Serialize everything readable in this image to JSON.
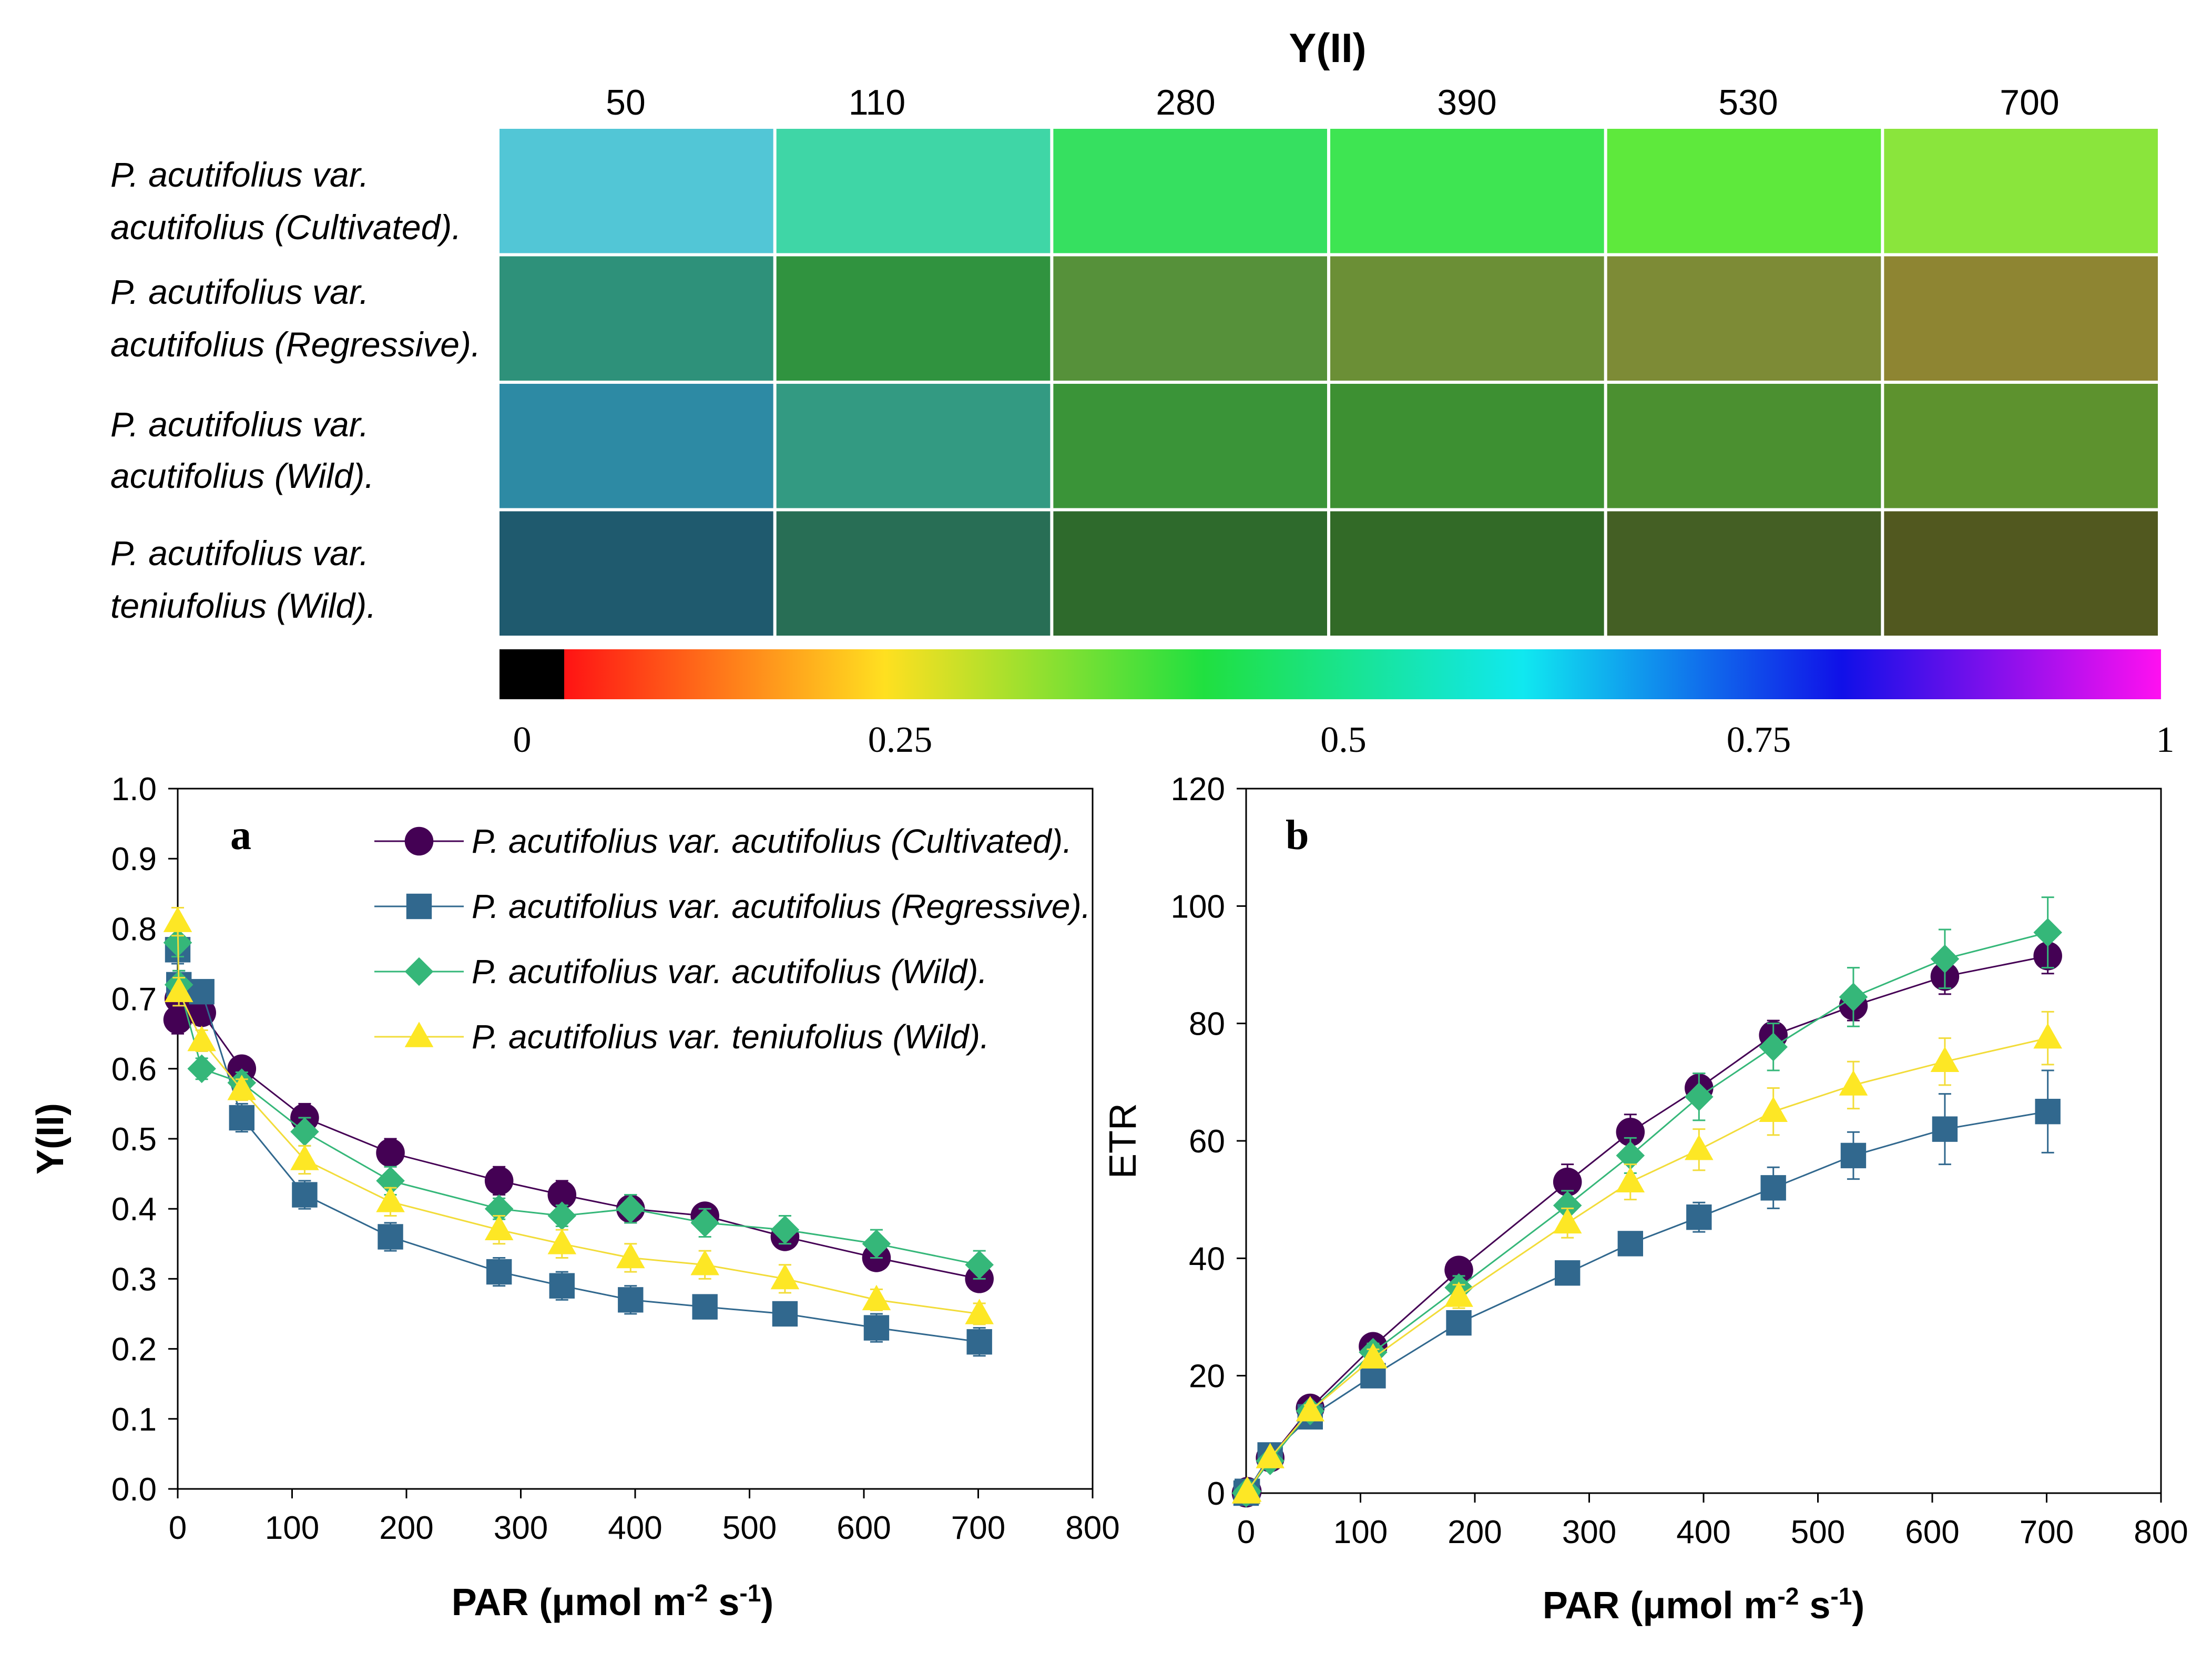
{
  "heatmap": {
    "title": "Y(II)",
    "par_levels": [
      "50",
      "110",
      "280",
      "390",
      "530",
      "700"
    ],
    "rows": [
      {
        "line1": "P. acutifolius var.",
        "line2": "acutifolius (Cultivated).",
        "colors": [
          "#52c6d6",
          "#3fd6a6",
          "#36e060",
          "#3ee552",
          "#5ee93c",
          "#8ae53c"
        ]
      },
      {
        "line1": "P. acutifolius var.",
        "line2": "acutifolius (Regressive).",
        "colors": [
          "#2e917a",
          "#30933f",
          "#56913a",
          "#6b8f36",
          "#7d8b36",
          "#8e8532"
        ]
      },
      {
        "line1": "P. acutifolius var.",
        "line2": "acutifolius (Wild).",
        "colors": [
          "#2d8aa4",
          "#339a82",
          "#3a9438",
          "#3d9032",
          "#4b9030",
          "#5d922e"
        ]
      },
      {
        "line1": "P. acutifolius var.",
        "line2": "teniufolius (Wild).",
        "colors": [
          "#1f5a6e",
          "#286e55",
          "#2e6a2c",
          "#326a27",
          "#445f24",
          "#51581f"
        ]
      }
    ],
    "colorbar": {
      "ticks": [
        "0",
        "0.25",
        "0.5",
        "0.75",
        "1"
      ],
      "stops": [
        "#000000",
        "#ff1414",
        "#ffe020",
        "#20e040",
        "#10e8f0",
        "#1010e8",
        "#ff10f0"
      ]
    }
  },
  "chart_data": [
    {
      "type": "line",
      "panel_label": "a",
      "xlabel": "PAR (μmol m-2 s-1)",
      "xlabel_main": "PAR (μmol m",
      "xlabel_exp1": "-2",
      "xlabel_mid": " s",
      "xlabel_exp2": "-1",
      "xlabel_end": ")",
      "ylabel": "Y(II)",
      "xlim": [
        0,
        800
      ],
      "ylim": [
        0,
        1.0
      ],
      "xticks": [
        "0",
        "100",
        "200",
        "300",
        "400",
        "500",
        "600",
        "700",
        "800"
      ],
      "yticks": [
        "0.0",
        "0.1",
        "0.2",
        "0.3",
        "0.4",
        "0.5",
        "0.6",
        "0.7",
        "0.8",
        "0.9",
        "1.0"
      ],
      "x": [
        0,
        1,
        21,
        56,
        111,
        186,
        281,
        336,
        396,
        461,
        531,
        611,
        701
      ],
      "series": [
        {
          "name": "P. acutifolius var. acutifolius (Cultivated).",
          "marker": "circle",
          "color": "#440154",
          "values": [
            0.67,
            0.7,
            0.68,
            0.6,
            0.53,
            0.48,
            0.44,
            0.42,
            0.4,
            0.39,
            0.36,
            0.33,
            0.3
          ],
          "errors": [
            0.02,
            0.02,
            0.015,
            0.015,
            0.02,
            0.02,
            0.02,
            0.02,
            0.02,
            0.015,
            0.015,
            0.015,
            0.015
          ]
        },
        {
          "name": "P. acutifolius var. acutifolius (Regressive).",
          "marker": "square",
          "color": "#31688e",
          "values": [
            0.77,
            0.72,
            0.71,
            0.53,
            0.42,
            0.36,
            0.31,
            0.29,
            0.27,
            0.26,
            0.25,
            0.23,
            0.21
          ],
          "errors": [
            0.02,
            0.02,
            0.015,
            0.02,
            0.02,
            0.02,
            0.02,
            0.02,
            0.02,
            0.015,
            0.015,
            0.02,
            0.02
          ]
        },
        {
          "name": "P. acutifolius var. acutifolius (Wild).",
          "marker": "diamond",
          "color": "#35b779",
          "values": [
            0.78,
            0.72,
            0.6,
            0.58,
            0.51,
            0.44,
            0.4,
            0.39,
            0.4,
            0.38,
            0.37,
            0.35,
            0.32
          ],
          "errors": [
            0.02,
            0.02,
            0.015,
            0.015,
            0.02,
            0.02,
            0.015,
            0.015,
            0.02,
            0.02,
            0.02,
            0.02,
            0.02
          ]
        },
        {
          "name": "P. acutifolius var. teniufolius (Wild).",
          "marker": "triangle",
          "color": "#fde725",
          "values": [
            0.81,
            0.71,
            0.64,
            0.57,
            0.47,
            0.41,
            0.37,
            0.35,
            0.33,
            0.32,
            0.3,
            0.27,
            0.25
          ],
          "errors": [
            0.02,
            0.02,
            0.015,
            0.015,
            0.02,
            0.02,
            0.02,
            0.02,
            0.02,
            0.02,
            0.02,
            0.015,
            0.015
          ]
        }
      ]
    },
    {
      "type": "line",
      "panel_label": "b",
      "xlabel": "PAR (μmol m-2 s-1)",
      "xlabel_main": "PAR (μmol m",
      "xlabel_exp1": "-2",
      "xlabel_mid": " s",
      "xlabel_exp2": "-1",
      "xlabel_end": ")",
      "ylabel": "ETR",
      "xlim": [
        0,
        800
      ],
      "ylim": [
        0,
        120
      ],
      "xticks": [
        "0",
        "100",
        "200",
        "300",
        "400",
        "500",
        "600",
        "700",
        "800"
      ],
      "yticks": [
        "0",
        "20",
        "40",
        "60",
        "80",
        "100",
        "120"
      ],
      "x": [
        0,
        1,
        21,
        56,
        111,
        186,
        281,
        336,
        396,
        461,
        531,
        611,
        701
      ],
      "series": [
        {
          "name": "P. acutifolius var. acutifolius (Cultivated).",
          "marker": "circle",
          "color": "#440154",
          "values": [
            0,
            0.3,
            6,
            14.5,
            25,
            38,
            53,
            61.5,
            69,
            78,
            83,
            88,
            91.5
          ],
          "errors": [
            0.3,
            0.3,
            0.5,
            1,
            1.5,
            2,
            3,
            3,
            2.5,
            2.5,
            2.5,
            3,
            3
          ]
        },
        {
          "name": "P. acutifolius var. acutifolius (Regressive).",
          "marker": "square",
          "color": "#31688e",
          "values": [
            0,
            0.3,
            6.5,
            13,
            20,
            29,
            37.5,
            42.5,
            47,
            52,
            57.5,
            62,
            65
          ],
          "errors": [
            0.3,
            0.3,
            0.5,
            1,
            1.5,
            1.5,
            1.5,
            1.5,
            2.5,
            3.5,
            4,
            6,
            7
          ]
        },
        {
          "name": "P. acutifolius var. acutifolius (Wild).",
          "marker": "diamond",
          "color": "#35b779",
          "values": [
            0,
            0.3,
            5.5,
            14,
            24,
            35,
            49,
            57.5,
            67.5,
            76,
            84.5,
            91,
            95.5
          ],
          "errors": [
            0.3,
            0.3,
            0.5,
            1,
            1.5,
            2,
            2.5,
            3,
            4,
            4,
            5,
            5,
            6
          ]
        },
        {
          "name": "P. acutifolius var. teniufolius (Wild).",
          "marker": "triangle",
          "color": "#fde725",
          "values": [
            0,
            0.3,
            6,
            14,
            23,
            33.5,
            46,
            53,
            58.5,
            65,
            69.5,
            73.5,
            77.5
          ],
          "errors": [
            0.3,
            0.3,
            0.5,
            1,
            1.5,
            2,
            2.5,
            3,
            3.5,
            4,
            4,
            4,
            4.5
          ]
        }
      ]
    }
  ]
}
